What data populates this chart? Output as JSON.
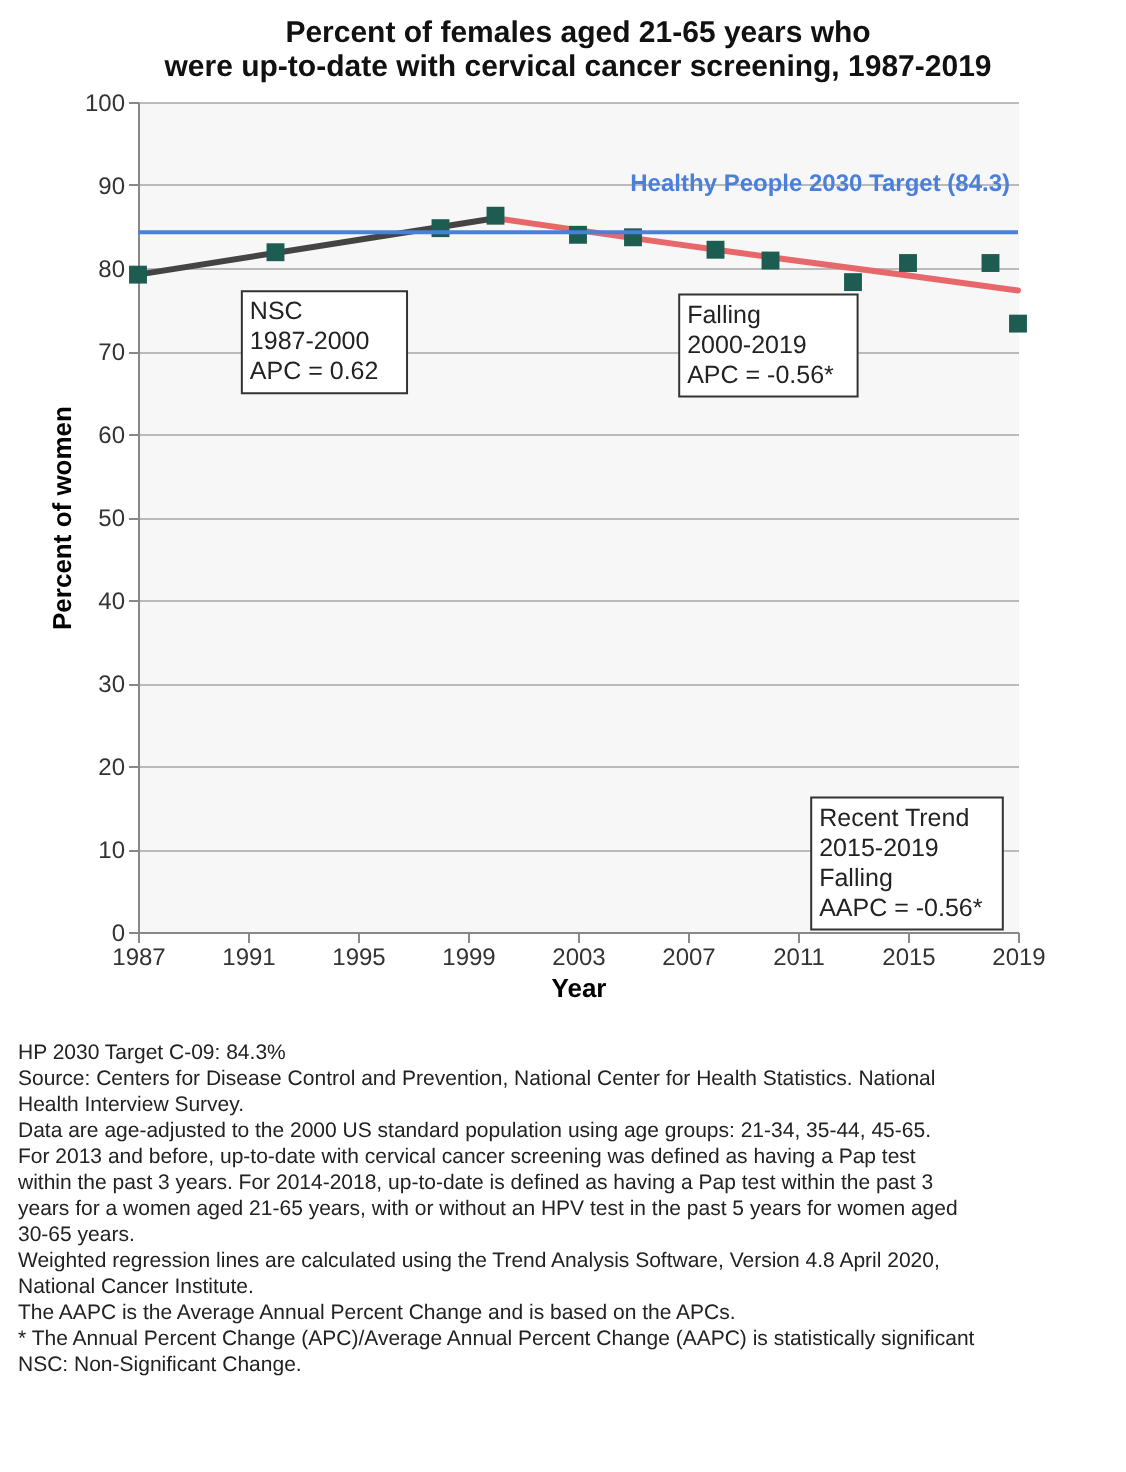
{
  "chart_data": {
    "type": "scatter",
    "title": "Percent of females aged 21-65 years who\nwere up-to-date with cervical cancer screening, 1987-2019",
    "xlabel": "Year",
    "ylabel": "Percent of women",
    "xlim": [
      1987,
      2019
    ],
    "xticks": [
      1987,
      1991,
      1995,
      1999,
      2003,
      2007,
      2011,
      2015,
      2019
    ],
    "ylim": [
      0,
      100
    ],
    "yticks": [
      0,
      10,
      20,
      30,
      40,
      50,
      60,
      70,
      80,
      90,
      100
    ],
    "grid": "y",
    "series": [
      {
        "marker": "square",
        "color": "#1d5c50",
        "x": [
          1987,
          1992,
          1998,
          2000,
          2003,
          2005,
          2008,
          2010,
          2013,
          2015,
          2018,
          2019
        ],
        "values": [
          79.2,
          81.9,
          84.8,
          86.3,
          84.0,
          83.7,
          82.2,
          80.9,
          78.3,
          80.6,
          80.6,
          73.3
        ]
      },
      {
        "type": "line",
        "line_style": "solid",
        "color": "#444444",
        "x": [
          1987,
          2000
        ],
        "values": [
          79.2,
          86.0
        ]
      },
      {
        "type": "line",
        "line_style": "solid",
        "color": "#e8676b",
        "x": [
          2000,
          2005,
          2010,
          2015,
          2019
        ],
        "values": [
          86.0,
          83.6,
          81.3,
          79.1,
          77.3
        ]
      }
    ],
    "ref_lines": [
      {
        "axis": "y",
        "value": 84.3,
        "label": "Healthy People 2030 Target (84.3)",
        "color": "#4a7fdb"
      }
    ],
    "annotations": [
      "NSC\n1987-2000\nAPC =  0.62",
      "Falling\n2000-2019\nAPC = -0.56*",
      "Recent Trend\n2015-2019\nFalling\nAAPC = -0.56*",
      "HP 2030 Target C-09: 84.3%",
      "Source: Centers for Disease Control and Prevention, National Center for Health Statistics. National Health Interview Survey.",
      "Data are age-adjusted to the 2000 US standard population using age groups: 21-34, 35-44, 45-65.",
      "For 2013 and before, up-to-date with cervical cancer screening was defined as having a Pap test within the past 3 years. For 2014-2018, up-to-date is defined as having a Pap test within the past 3 years for a women aged 21-65 years, with or without an HPV test in the past 5 years for women aged 30-65 years.",
      "Weighted regression lines are calculated using the Trend Analysis Software, Version 4.8 April 2020, National Cancer Institute.",
      "The AAPC is the Average Annual Percent Change and is based on the APCs.",
      "* The Annual Percent Change (APC)/Average Annual Percent Change (AAPC) is statistically significant",
      "NSC: Non-Significant Change."
    ]
  }
}
